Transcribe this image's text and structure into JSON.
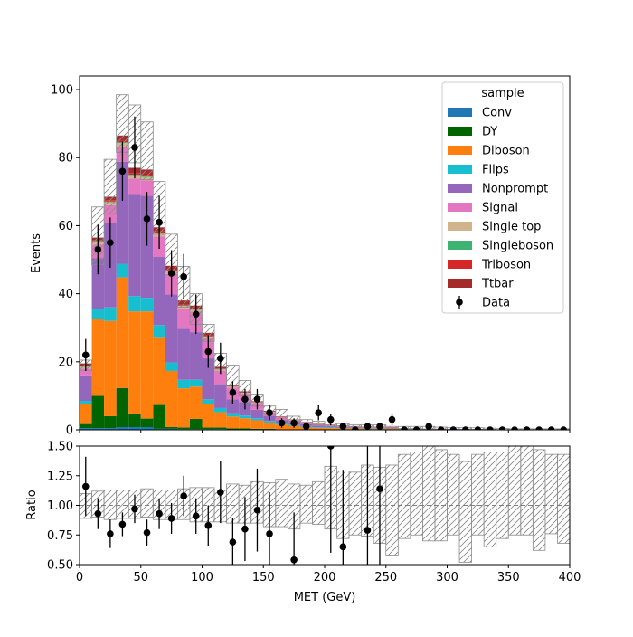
{
  "chart_data": [
    {
      "type": "bar",
      "stacked": true,
      "histogram": true,
      "xlabel": "",
      "ylabel": "Events",
      "xlim": [
        0,
        400
      ],
      "ylim": [
        0,
        104
      ],
      "y_ticks": [
        "0",
        "20",
        "40",
        "60",
        "80",
        "100"
      ],
      "bin_width": 10,
      "bin_edges_start": [
        0,
        10,
        20,
        30,
        40,
        50,
        60,
        70,
        80,
        90,
        100,
        110,
        120,
        130,
        140,
        150,
        160,
        170,
        180,
        190,
        200,
        210,
        220,
        230,
        240,
        250,
        260,
        270,
        280,
        290,
        300,
        310,
        320,
        330,
        340,
        350,
        360,
        370,
        380,
        390
      ],
      "legend": {
        "title": "sample",
        "placement": "top-right"
      },
      "series": [
        {
          "name": "Conv",
          "color": "#1f77b4",
          "values": [
            0.5,
            0.5,
            0.5,
            0.8,
            0.8,
            0.8,
            0.3,
            0.3,
            0.2,
            0.2,
            0.2,
            0.2,
            0.1,
            0.1,
            0.1,
            0.1,
            0,
            0,
            0,
            0,
            0,
            0,
            0,
            0,
            0,
            0,
            0,
            0,
            0,
            0,
            0,
            0,
            0,
            0,
            0,
            0,
            0,
            0,
            0,
            0
          ]
        },
        {
          "name": "DY",
          "color": "#006400",
          "values": [
            1.2,
            9.5,
            3.5,
            11.5,
            4,
            2.5,
            7,
            0.5,
            0.5,
            3,
            0.5,
            0.5,
            0.3,
            0.3,
            0.2,
            0.2,
            0.1,
            0.1,
            0,
            0,
            0,
            0,
            0,
            0,
            0,
            0,
            0,
            0,
            0,
            0,
            0,
            0,
            0,
            0,
            0,
            0,
            0,
            0,
            0,
            0
          ]
        },
        {
          "name": "Diboson",
          "color": "#ff7f0e",
          "values": [
            5.8,
            22.5,
            28,
            32.5,
            30,
            31.5,
            20,
            16.5,
            11.5,
            9.5,
            6.8,
            4.5,
            3.5,
            3,
            2.5,
            1.8,
            1.4,
            1.1,
            0.8,
            0.6,
            0.5,
            0.4,
            0.4,
            0.3,
            0.3,
            0.3,
            0.2,
            0.2,
            0.2,
            0.1,
            0.1,
            0.1,
            0.1,
            0.1,
            0.1,
            0,
            0,
            0,
            0,
            0
          ]
        },
        {
          "name": "Flips",
          "color": "#17becf",
          "values": [
            1,
            3,
            4,
            4,
            4.5,
            4,
            3.5,
            2.5,
            2.5,
            2,
            1.5,
            1.2,
            1,
            0.8,
            0.6,
            0.5,
            0.4,
            0.3,
            0.3,
            0.2,
            0.2,
            0.1,
            0.1,
            0.1,
            0.1,
            0.1,
            0.1,
            0.1,
            0,
            0,
            0,
            0,
            0,
            0,
            0,
            0,
            0,
            0,
            0,
            0
          ]
        },
        {
          "name": "Nonprompt",
          "color": "#9467bd",
          "values": [
            7.5,
            15,
            25,
            30,
            30,
            30,
            20,
            20,
            15,
            14,
            12,
            7,
            4,
            4,
            2.5,
            1.5,
            1,
            0.8,
            0.6,
            0.4,
            0.4,
            0.3,
            0.3,
            0.2,
            0.2,
            0.2,
            0.1,
            0.1,
            0.1,
            0.1,
            0.1,
            0.1,
            0.1,
            0.1,
            0,
            0,
            0,
            0,
            0,
            0
          ]
        },
        {
          "name": "Signal",
          "color": "#e377c2",
          "values": [
            2,
            4,
            5,
            4.5,
            4.5,
            4.5,
            6,
            6,
            6,
            6,
            6,
            4,
            3.5,
            2.5,
            2,
            1,
            0.8,
            0.6,
            0.5,
            0.4,
            0.3,
            0.3,
            0.2,
            0.2,
            0.2,
            0.1,
            0.1,
            0.1,
            0.1,
            0.1,
            0.1,
            0.1,
            0,
            0,
            0,
            0,
            0,
            0,
            0,
            0
          ]
        },
        {
          "name": "Single top",
          "color": "#d2b48c",
          "values": [
            0.5,
            0.8,
            0.9,
            1,
            1,
            1,
            0.9,
            0.8,
            0.7,
            0.5,
            0.4,
            0.3,
            0.3,
            0.2,
            0.2,
            0.2,
            0.1,
            0.1,
            0.1,
            0.1,
            0.1,
            0.1,
            0,
            0,
            0,
            0,
            0,
            0,
            0,
            0,
            0,
            0,
            0,
            0,
            0,
            0,
            0,
            0,
            0,
            0
          ]
        },
        {
          "name": "Singleboson",
          "color": "#3cb371",
          "values": [
            0.1,
            0.2,
            0.2,
            0.2,
            0.2,
            0.2,
            0.2,
            0.1,
            0.1,
            0.1,
            0.1,
            0.1,
            0,
            0,
            0,
            0,
            0,
            0,
            0,
            0,
            0,
            0,
            0,
            0,
            0,
            0,
            0,
            0,
            0,
            0,
            0,
            0,
            0,
            0,
            0,
            0,
            0,
            0,
            0,
            0
          ]
        },
        {
          "name": "Triboson",
          "color": "#d62728",
          "values": [
            0.2,
            0.3,
            0.4,
            0.5,
            0.5,
            0.5,
            0.4,
            0.3,
            0.3,
            0.2,
            0.2,
            0.2,
            0.1,
            0.1,
            0.1,
            0.1,
            0.1,
            0,
            0,
            0,
            0,
            0,
            0,
            0,
            0,
            0,
            0,
            0,
            0,
            0,
            0,
            0,
            0,
            0,
            0,
            0,
            0,
            0,
            0,
            0
          ]
        },
        {
          "name": "Ttbar",
          "color": "#a52a2a",
          "values": [
            0.7,
            0.7,
            1,
            1.5,
            1.5,
            1.5,
            1.2,
            1.2,
            1.2,
            1,
            0.8,
            0.5,
            0.3,
            0.3,
            0.2,
            0.2,
            0.1,
            0.1,
            0.1,
            0.1,
            0.1,
            0.1,
            0.1,
            0.1,
            0.1,
            0.1,
            0,
            0,
            0,
            0,
            0,
            0,
            0,
            0,
            0,
            0,
            0,
            0,
            0,
            0
          ]
        }
      ],
      "uncertainty_band": {
        "up": [
          20.5,
          65.5,
          79.5,
          98.5,
          95.5,
          90.5,
          73,
          57.5,
          48,
          40,
          31,
          22.5,
          19,
          14.5,
          10.5,
          7,
          6,
          4,
          3,
          2.5,
          2,
          1.8,
          1.5,
          1.5,
          1.5,
          1,
          1,
          1,
          1,
          0.8,
          0.7,
          0.7,
          0.6,
          0.5,
          0.4,
          0.3,
          0.3,
          0.3,
          0.3,
          0.3
        ],
        "down": [
          17.5,
          48.5,
          63.5,
          81.5,
          78.5,
          73.5,
          57.5,
          45.5,
          36,
          31,
          26,
          18,
          13,
          10,
          7,
          4.5,
          3.5,
          2.5,
          2,
          1.5,
          1,
          0.7,
          0.6,
          0.5,
          0.5,
          0.4,
          0.3,
          0.3,
          0.2,
          0.2,
          0.1,
          0.1,
          0.1,
          0.1,
          0,
          0,
          0,
          0,
          0,
          0
        ]
      },
      "data_points": {
        "name": "Data",
        "color": "#000000",
        "x": [
          5,
          15,
          25,
          35,
          45,
          55,
          65,
          75,
          85,
          95,
          105,
          115,
          125,
          135,
          145,
          155,
          165,
          175,
          185,
          195,
          205,
          215,
          225,
          235,
          245,
          255,
          265,
          275,
          285,
          295,
          305,
          315,
          325,
          335,
          345,
          355,
          365,
          375,
          385,
          395
        ],
        "y": [
          22,
          53,
          55,
          76,
          83,
          62,
          61,
          46,
          45,
          34,
          23,
          21,
          11,
          9,
          9,
          5,
          2,
          2,
          1,
          5,
          3,
          1,
          0,
          1,
          1,
          3,
          0,
          0,
          1,
          0,
          0,
          0,
          0,
          0,
          0,
          0,
          0,
          0,
          0,
          0
        ],
        "yerr": [
          4.7,
          7.3,
          7.4,
          8.7,
          9.1,
          7.9,
          7.8,
          6.8,
          6.7,
          5.8,
          4.8,
          4.6,
          3.3,
          3,
          3,
          2.2,
          1.4,
          1.4,
          1,
          2.2,
          1.7,
          1,
          0,
          1,
          1,
          1.7,
          0,
          0,
          1,
          0,
          0,
          0,
          0,
          0,
          0,
          0,
          0,
          0,
          0,
          0
        ]
      }
    },
    {
      "type": "scatter",
      "xlabel": "MET (GeV)",
      "ylabel": "Ratio",
      "xlim": [
        0,
        400
      ],
      "ylim": [
        0.5,
        1.5
      ],
      "x_ticks": [
        "0",
        "50",
        "100",
        "150",
        "200",
        "250",
        "300",
        "350",
        "400"
      ],
      "y_ticks": [
        "0.50",
        "0.75",
        "1.00",
        "1.25",
        "1.50"
      ],
      "reference_line": 1.0,
      "uncertainty_band": {
        "up": [
          1.1,
          1.12,
          1.13,
          1.13,
          1.13,
          1.14,
          1.13,
          1.13,
          1.14,
          1.15,
          1.15,
          1.13,
          1.18,
          1.17,
          1.2,
          1.19,
          1.22,
          1.18,
          1.17,
          1.2,
          1.33,
          1.29,
          1.28,
          1.34,
          1.32,
          1.34,
          1.43,
          1.45,
          1.5,
          1.47,
          1.43,
          1.37,
          1.43,
          1.45,
          1.45,
          1.5,
          1.5,
          1.47,
          1.43,
          1.43
        ],
        "down": [
          0.89,
          0.9,
          0.88,
          0.89,
          0.89,
          0.9,
          0.88,
          0.88,
          0.88,
          0.86,
          0.86,
          0.86,
          0.85,
          0.85,
          0.85,
          0.82,
          0.82,
          0.8,
          0.85,
          0.84,
          0.8,
          0.72,
          0.75,
          0.74,
          0.68,
          0.58,
          0.72,
          0.75,
          0.7,
          0.7,
          0.75,
          0.52,
          0.75,
          0.65,
          0.72,
          0.75,
          0.75,
          0.62,
          0.76,
          0.68
        ]
      },
      "points": {
        "x": [
          5,
          15,
          25,
          35,
          45,
          55,
          65,
          75,
          85,
          95,
          105,
          115,
          125,
          135,
          145,
          155,
          175,
          205,
          215,
          235,
          245
        ],
        "y": [
          1.16,
          0.93,
          0.76,
          0.84,
          0.97,
          0.77,
          0.93,
          0.89,
          1.08,
          0.91,
          0.83,
          1.11,
          0.69,
          0.8,
          0.96,
          0.76,
          0.54,
          1.5,
          0.65,
          0.79,
          1.14
        ],
        "yerr": [
          0.25,
          0.13,
          0.12,
          0.1,
          0.12,
          0.11,
          0.13,
          0.13,
          0.17,
          0.15,
          0.17,
          0.26,
          0.2,
          0.27,
          0.35,
          0.35,
          0.4,
          0.9,
          0.65,
          0.8,
          1.1
        ]
      }
    }
  ]
}
